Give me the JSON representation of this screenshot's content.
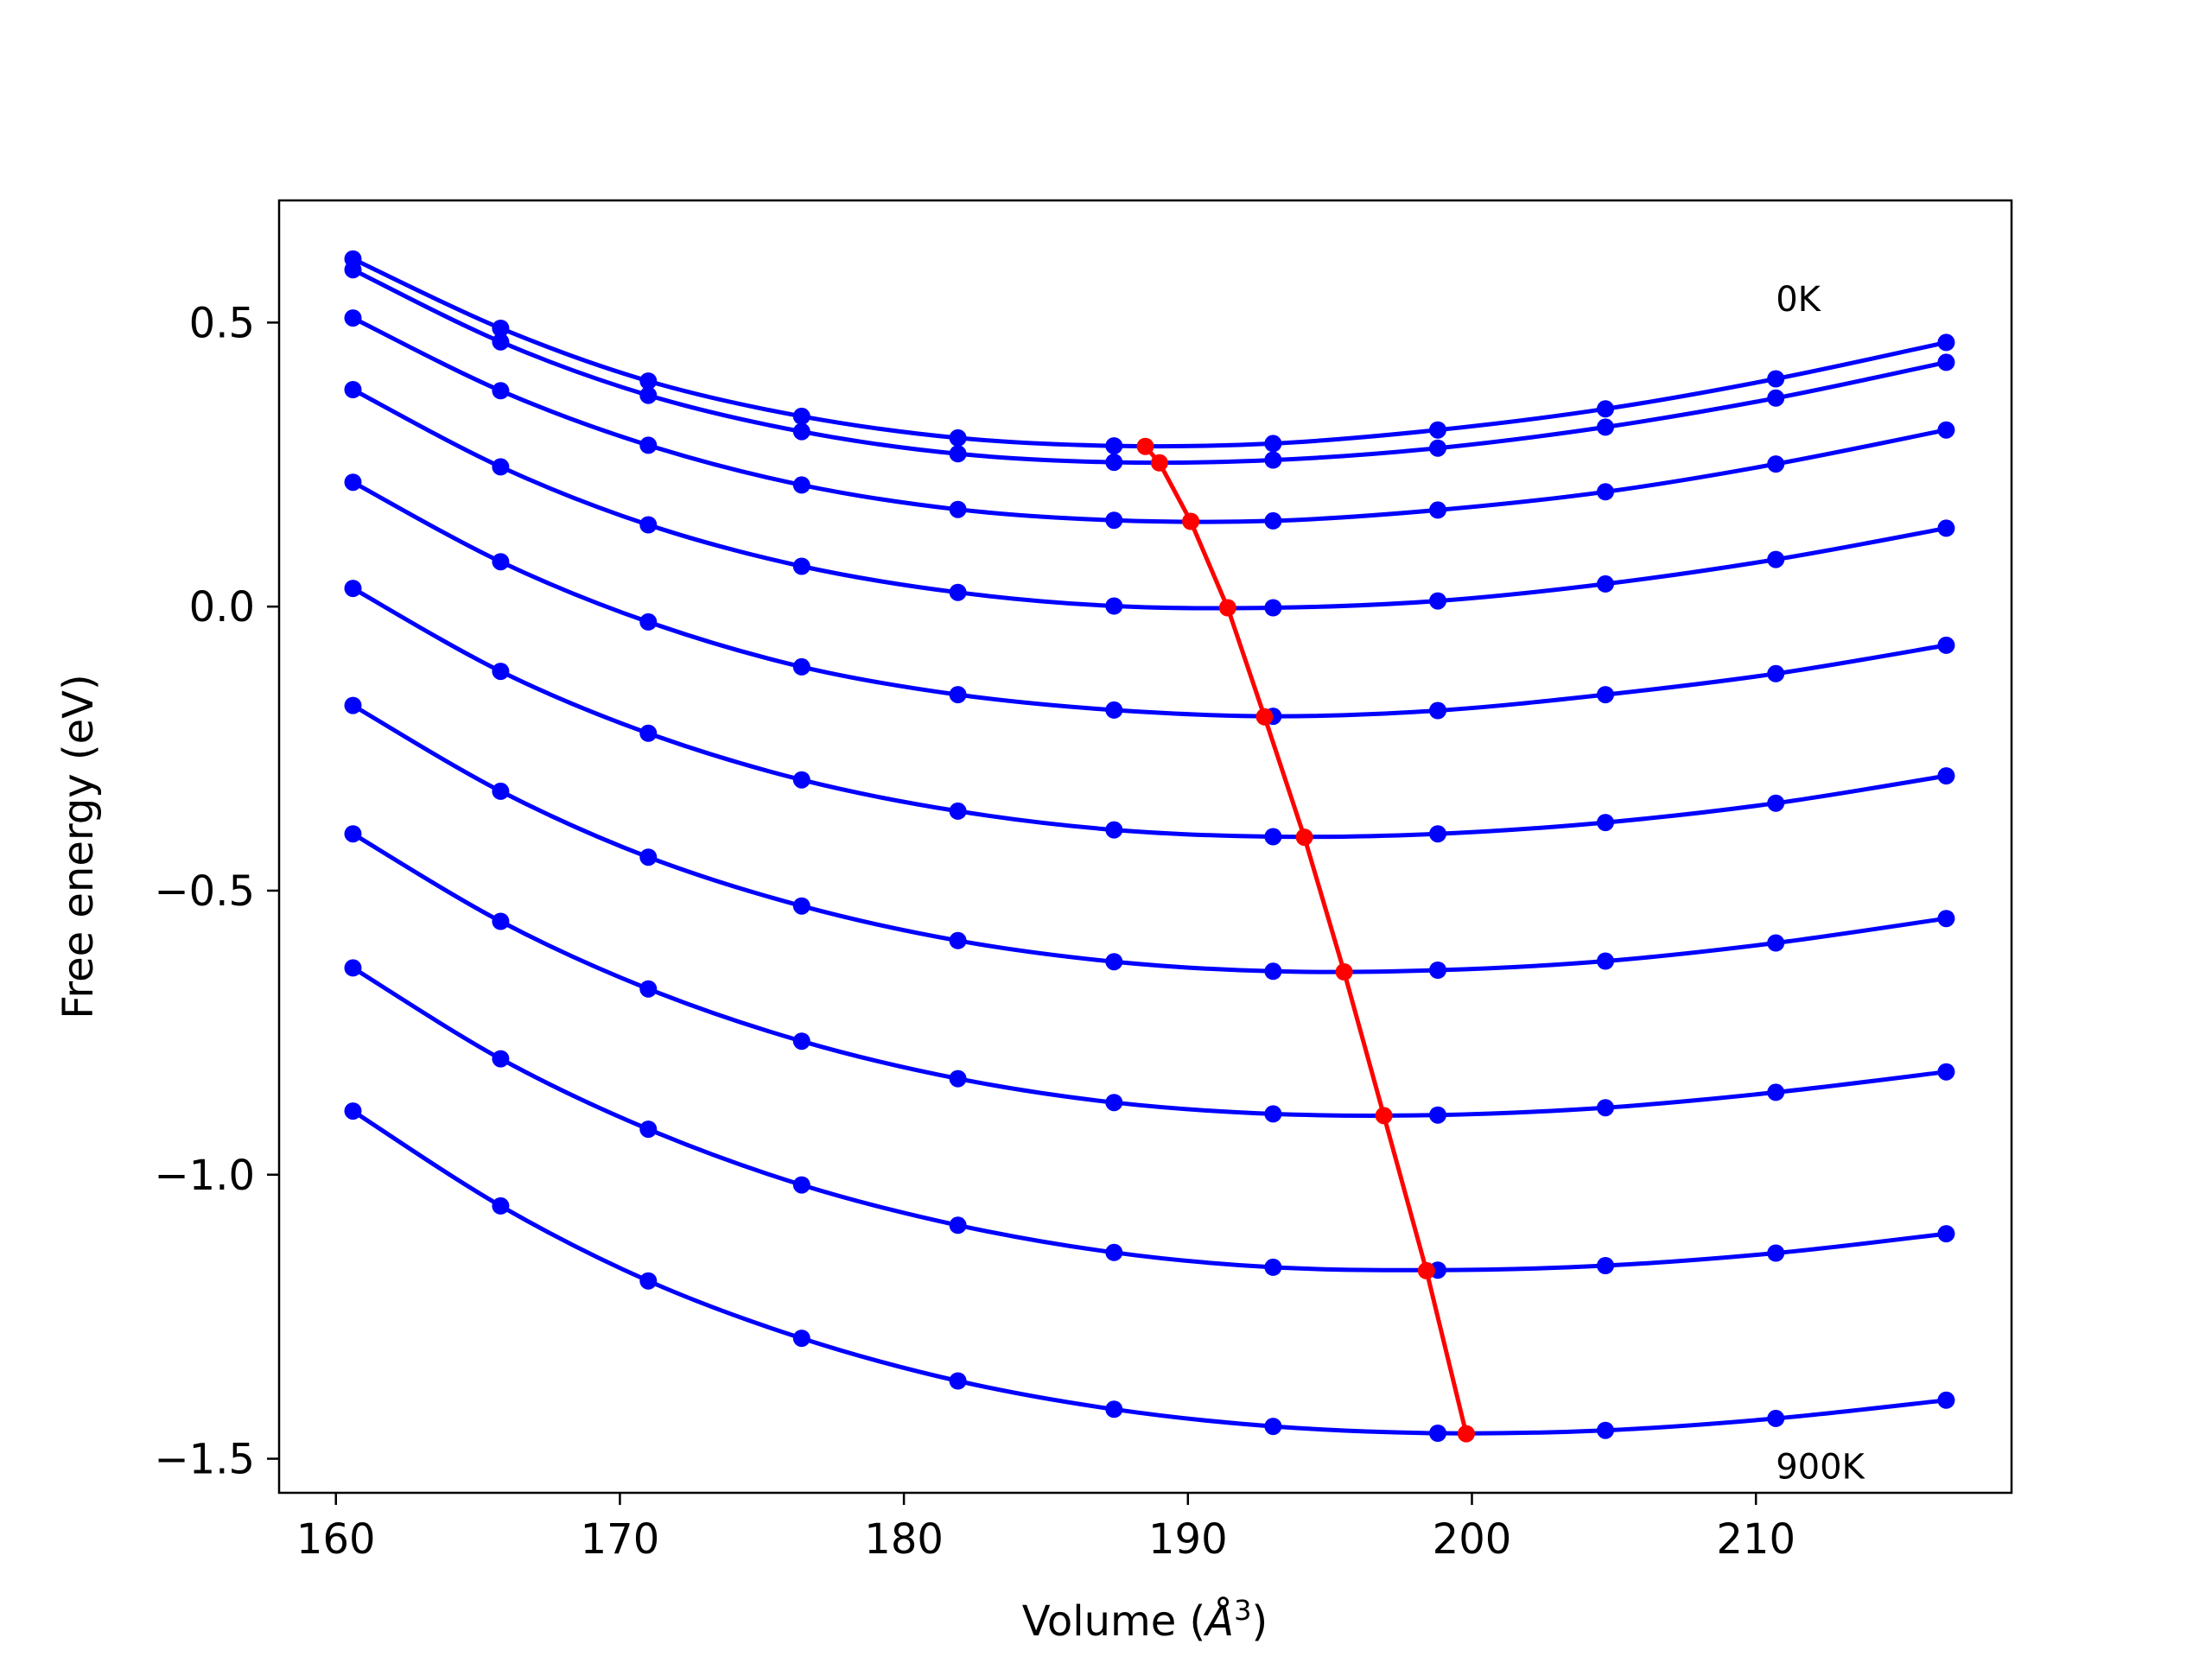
{
  "chart_data": {
    "type": "line",
    "xlabel_main": "Volume (",
    "xlabel_symbol": "Å",
    "xlabel_exp": "3",
    "xlabel_close": ")",
    "ylabel": "Free energy (eV)",
    "xlim": [
      158,
      219
    ],
    "ylim": [
      -1.56,
      0.715
    ],
    "xticks": [
      160,
      170,
      180,
      190,
      200,
      210
    ],
    "yticks": [
      0.5,
      0.0,
      -0.5,
      -1.0,
      -1.5
    ],
    "ytick_labels": [
      "0.5",
      "0.0",
      "−0.5",
      "−1.0",
      "−1.5"
    ],
    "volumes": [
      160.6,
      165.8,
      171.0,
      176.4,
      181.9,
      187.4,
      193.0,
      198.8,
      204.7,
      210.7,
      216.7
    ],
    "series_color": "#0000ff",
    "minimum_color": "#ff0000",
    "series": [
      {
        "values": [
          0.612,
          0.49,
          0.397,
          0.335,
          0.297,
          0.283,
          0.287,
          0.311,
          0.348,
          0.401,
          0.465
        ]
      },
      {
        "values": [
          0.593,
          0.466,
          0.372,
          0.308,
          0.269,
          0.254,
          0.258,
          0.279,
          0.316,
          0.367,
          0.43
        ]
      },
      {
        "values": [
          0.508,
          0.38,
          0.284,
          0.214,
          0.171,
          0.152,
          0.151,
          0.17,
          0.202,
          0.251,
          0.311
        ]
      },
      {
        "values": [
          0.382,
          0.246,
          0.144,
          0.071,
          0.025,
          0.001,
          -0.002,
          0.01,
          0.04,
          0.083,
          0.138
        ]
      },
      {
        "values": [
          0.219,
          0.079,
          -0.027,
          -0.106,
          -0.155,
          -0.182,
          -0.193,
          -0.183,
          -0.155,
          -0.118,
          -0.068
        ]
      },
      {
        "values": [
          0.032,
          -0.114,
          -0.223,
          -0.305,
          -0.36,
          -0.393,
          -0.405,
          -0.4,
          -0.38,
          -0.346,
          -0.298
        ]
      },
      {
        "values": [
          -0.174,
          -0.325,
          -0.441,
          -0.527,
          -0.588,
          -0.625,
          -0.642,
          -0.64,
          -0.624,
          -0.592,
          -0.549
        ]
      },
      {
        "values": [
          -0.4,
          -0.554,
          -0.673,
          -0.765,
          -0.831,
          -0.873,
          -0.893,
          -0.895,
          -0.882,
          -0.855,
          -0.819
        ]
      },
      {
        "values": [
          -0.636,
          -0.796,
          -0.92,
          -1.018,
          -1.089,
          -1.137,
          -1.163,
          -1.168,
          -1.16,
          -1.138,
          -1.104
        ]
      },
      {
        "values": [
          -0.888,
          -1.055,
          -1.187,
          -1.288,
          -1.363,
          -1.413,
          -1.443,
          -1.455,
          -1.45,
          -1.429,
          -1.397
        ]
      }
    ],
    "minimum_path": {
      "x": [
        188.5,
        189.0,
        190.1,
        191.4,
        192.7,
        194.1,
        195.5,
        196.9,
        198.4,
        199.8
      ],
      "y": [
        0.282,
        0.253,
        0.15,
        -0.002,
        -0.194,
        -0.406,
        -0.643,
        -0.896,
        -1.169,
        -1.456
      ]
    },
    "annotations": [
      {
        "text": "0K",
        "x": 210.7,
        "y": 0.52
      },
      {
        "text": "900K",
        "x": 210.7,
        "y": -1.535
      }
    ]
  }
}
